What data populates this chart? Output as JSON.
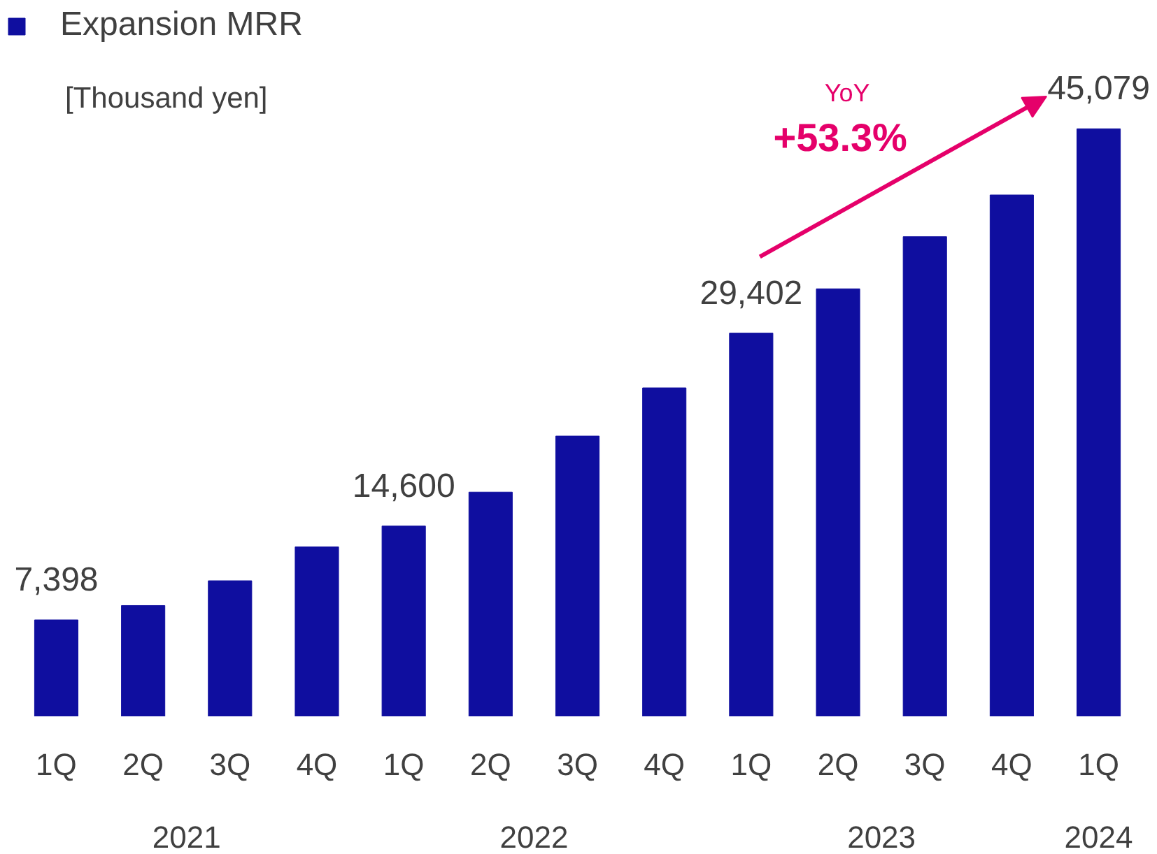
{
  "chart_data": {
    "type": "bar",
    "categories": [
      "1Q",
      "2Q",
      "3Q",
      "4Q",
      "1Q",
      "2Q",
      "3Q",
      "4Q",
      "1Q",
      "2Q",
      "3Q",
      "4Q",
      "1Q"
    ],
    "series": [
      {
        "name": "Expansion MRR",
        "color": "#0f0e9f",
        "values": [
          7398,
          8500,
          10400,
          13000,
          14600,
          17200,
          21500,
          25200,
          29402,
          32800,
          36800,
          40000,
          45079
        ],
        "value_labels": [
          "7,398",
          null,
          null,
          null,
          "14,600",
          null,
          null,
          null,
          "29,402",
          null,
          null,
          null,
          "45,079"
        ]
      }
    ],
    "ylabel": "[Thousand yen]",
    "annotations": [
      "YoY",
      "+53.3%",
      "2021",
      "2022",
      "2023",
      "2024"
    ],
    "legend": "top left",
    "grid": false,
    "tick_labels": "x"
  }
}
